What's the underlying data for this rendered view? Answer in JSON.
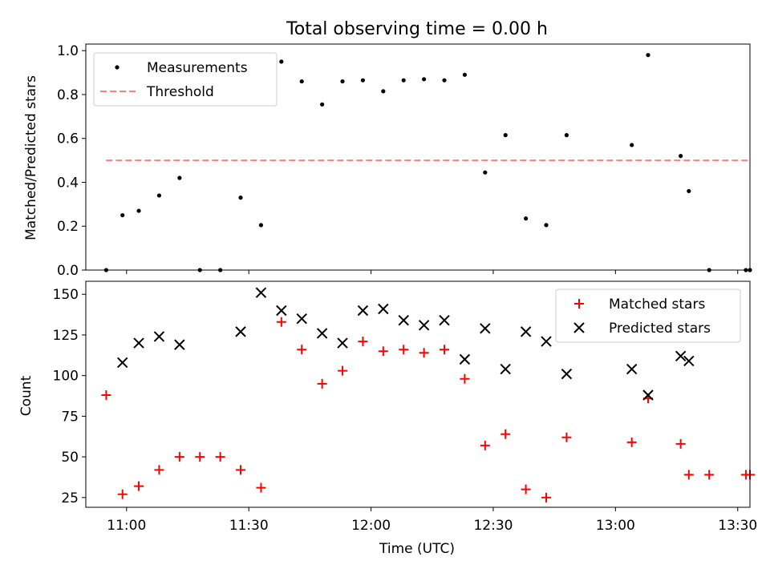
{
  "chart_data": [
    {
      "type": "scatter",
      "title": "Total observing time = 0.00 h",
      "xlabel": "",
      "ylabel": "Matched/Predicted stars",
      "xlim": [
        "10:50",
        "13:33"
      ],
      "ylim": [
        0,
        1.03
      ],
      "yticks": [
        "0.0",
        "0.2",
        "0.4",
        "0.6",
        "0.8",
        "1.0"
      ],
      "grid": false,
      "legend": "top-left",
      "series": [
        {
          "name": "Measurements",
          "marker": "dot",
          "color": "#000000",
          "points": [
            [
              "10:55",
              0.0
            ],
            [
              "10:59",
              0.25
            ],
            [
              "11:03",
              0.27
            ],
            [
              "11:08",
              0.34
            ],
            [
              "11:13",
              0.42
            ],
            [
              "11:18",
              0.0
            ],
            [
              "11:23",
              0.0
            ],
            [
              "11:28",
              0.33
            ],
            [
              "11:33",
              0.205
            ],
            [
              "11:38",
              0.95
            ],
            [
              "11:43",
              0.86
            ],
            [
              "11:48",
              0.755
            ],
            [
              "11:53",
              0.86
            ],
            [
              "11:58",
              0.865
            ],
            [
              "12:03",
              0.815
            ],
            [
              "12:08",
              0.865
            ],
            [
              "12:13",
              0.87
            ],
            [
              "12:18",
              0.865
            ],
            [
              "12:23",
              0.89
            ],
            [
              "12:28",
              0.445
            ],
            [
              "12:33",
              0.615
            ],
            [
              "12:38",
              0.235
            ],
            [
              "12:43",
              0.205
            ],
            [
              "12:48",
              0.615
            ],
            [
              "13:04",
              0.57
            ],
            [
              "13:08",
              0.98
            ],
            [
              "13:16",
              0.52
            ],
            [
              "13:18",
              0.36
            ],
            [
              "13:23",
              0.0
            ],
            [
              "13:32",
              0.0
            ],
            [
              "13:33",
              0.0
            ]
          ]
        },
        {
          "name": "Threshold",
          "style": "dashed",
          "color": "#ff7f7f",
          "points": [
            [
              "10:55",
              0.5
            ],
            [
              "13:33",
              0.5
            ]
          ]
        }
      ]
    },
    {
      "type": "scatter",
      "title": "",
      "xlabel": "Time (UTC)",
      "ylabel": "Count",
      "xlim": [
        "10:50",
        "13:33"
      ],
      "ylim": [
        19,
        158
      ],
      "yticks": [
        "25",
        "50",
        "75",
        "100",
        "125",
        "150"
      ],
      "xticks": [
        "11:00",
        "11:30",
        "12:00",
        "12:30",
        "13:00",
        "13:30"
      ],
      "grid": false,
      "legend": "top-right",
      "series": [
        {
          "name": "Matched stars",
          "marker": "plus",
          "color": "#ff0000",
          "points": [
            [
              "10:55",
              88
            ],
            [
              "10:59",
              27
            ],
            [
              "11:03",
              32
            ],
            [
              "11:08",
              42
            ],
            [
              "11:13",
              50
            ],
            [
              "11:18",
              50
            ],
            [
              "11:23",
              50
            ],
            [
              "11:28",
              42
            ],
            [
              "11:33",
              31
            ],
            [
              "11:38",
              133
            ],
            [
              "11:43",
              116
            ],
            [
              "11:48",
              95
            ],
            [
              "11:53",
              103
            ],
            [
              "11:58",
              121
            ],
            [
              "12:03",
              115
            ],
            [
              "12:08",
              116
            ],
            [
              "12:13",
              114
            ],
            [
              "12:18",
              116
            ],
            [
              "12:23",
              98
            ],
            [
              "12:28",
              57
            ],
            [
              "12:33",
              64
            ],
            [
              "12:38",
              30
            ],
            [
              "12:43",
              25
            ],
            [
              "12:48",
              62
            ],
            [
              "13:04",
              59
            ],
            [
              "13:08",
              86
            ],
            [
              "13:16",
              58
            ],
            [
              "13:18",
              39
            ],
            [
              "13:23",
              39
            ],
            [
              "13:32",
              39
            ],
            [
              "13:33",
              39
            ]
          ]
        },
        {
          "name": "Predicted stars",
          "marker": "x",
          "color": "#000000",
          "points": [
            [
              "10:59",
              108
            ],
            [
              "11:03",
              120
            ],
            [
              "11:08",
              124
            ],
            [
              "11:13",
              119
            ],
            [
              "11:28",
              127
            ],
            [
              "11:33",
              151
            ],
            [
              "11:38",
              140
            ],
            [
              "11:43",
              135
            ],
            [
              "11:48",
              126
            ],
            [
              "11:53",
              120
            ],
            [
              "11:58",
              140
            ],
            [
              "12:03",
              141
            ],
            [
              "12:08",
              134
            ],
            [
              "12:13",
              131
            ],
            [
              "12:18",
              134
            ],
            [
              "12:23",
              110
            ],
            [
              "12:28",
              129
            ],
            [
              "12:33",
              104
            ],
            [
              "12:38",
              127
            ],
            [
              "12:43",
              121
            ],
            [
              "12:48",
              101
            ],
            [
              "13:04",
              104
            ],
            [
              "13:08",
              88
            ],
            [
              "13:16",
              112
            ],
            [
              "13:18",
              109
            ]
          ]
        }
      ]
    }
  ]
}
